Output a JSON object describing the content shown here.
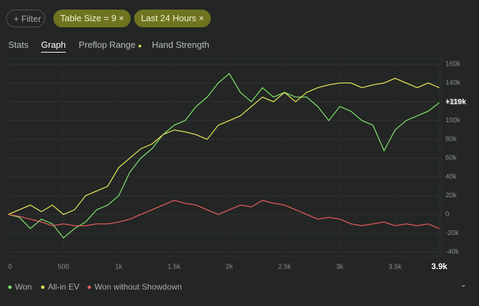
{
  "toolbar": {
    "filter_button": "Filter",
    "chips": [
      "Table Size = 9",
      "Last 24 Hours"
    ]
  },
  "tabs": [
    "Stats",
    "Graph",
    "Preflop Range",
    "Hand Strength"
  ],
  "chart_data": {
    "type": "line",
    "x": [
      0,
      100,
      200,
      300,
      400,
      500,
      600,
      700,
      800,
      900,
      1000,
      1100,
      1200,
      1300,
      1400,
      1500,
      1600,
      1700,
      1800,
      1900,
      2000,
      2100,
      2200,
      2300,
      2400,
      2500,
      2600,
      2700,
      2800,
      2900,
      3000,
      3100,
      3200,
      3300,
      3400,
      3500,
      3600,
      3700,
      3800,
      3900
    ],
    "series": [
      {
        "name": "Won",
        "color": "#7fe06c",
        "values": [
          0,
          -3000,
          -15000,
          -5000,
          -10000,
          -25000,
          -15000,
          -8000,
          5000,
          10000,
          20000,
          45000,
          60000,
          70000,
          85000,
          95000,
          100000,
          115000,
          125000,
          140000,
          150000,
          130000,
          120000,
          135000,
          125000,
          130000,
          125000,
          125000,
          115000,
          100000,
          115000,
          110000,
          100000,
          95000,
          68000,
          90000,
          100000,
          105000,
          110000,
          119000
        ]
      },
      {
        "name": "All-in EV",
        "color": "#e6e35a",
        "values": [
          0,
          5000,
          10000,
          3000,
          10000,
          0,
          5000,
          20000,
          25000,
          30000,
          50000,
          60000,
          70000,
          75000,
          85000,
          90000,
          88000,
          85000,
          80000,
          95000,
          100000,
          105000,
          115000,
          125000,
          120000,
          130000,
          120000,
          130000,
          135000,
          138000,
          140000,
          140000,
          135000,
          138000,
          140000,
          145000,
          140000,
          135000,
          140000,
          135000
        ]
      },
      {
        "name": "Won without Showdown",
        "color": "#e65c5c",
        "values": [
          0,
          -2000,
          -5000,
          -8000,
          -12000,
          -10000,
          -12000,
          -12000,
          -10000,
          -10000,
          -8000,
          -5000,
          0,
          5000,
          10000,
          15000,
          12000,
          10000,
          5000,
          0,
          5000,
          10000,
          8000,
          15000,
          12000,
          10000,
          5000,
          0,
          -5000,
          -3000,
          -5000,
          -10000,
          -12000,
          -10000,
          -8000,
          -12000,
          -10000,
          -12000,
          -10000,
          -15000
        ]
      }
    ],
    "xlim": [
      0,
      3900
    ],
    "xticks": [
      0,
      500,
      {
        "value": 1000,
        "label": "1k"
      },
      {
        "value": 1500,
        "label": "1.5k"
      },
      {
        "value": 2000,
        "label": "2k"
      },
      {
        "value": 2500,
        "label": "2.5k"
      },
      {
        "value": 3000,
        "label": "3k"
      },
      {
        "value": 3500,
        "label": "3.5k"
      },
      {
        "value": 3900,
        "label": "3.9k"
      }
    ],
    "ylim": [
      -40000,
      160000
    ],
    "yticks": [
      {
        "value": -40000,
        "label": "-40k"
      },
      {
        "value": -20000,
        "label": "-20k"
      },
      0,
      {
        "value": 20000,
        "label": "20k"
      },
      {
        "value": 40000,
        "label": "40k"
      },
      {
        "value": 60000,
        "label": "60k"
      },
      {
        "value": 80000,
        "label": "80k"
      },
      {
        "value": 100000,
        "label": "100k"
      },
      {
        "value": 120000,
        "label": "120k"
      },
      {
        "value": 140000,
        "label": "140k"
      },
      {
        "value": 160000,
        "label": "160k"
      }
    ],
    "end_value_label": {
      "value": 119000,
      "label": "+119k"
    },
    "grid": true
  }
}
